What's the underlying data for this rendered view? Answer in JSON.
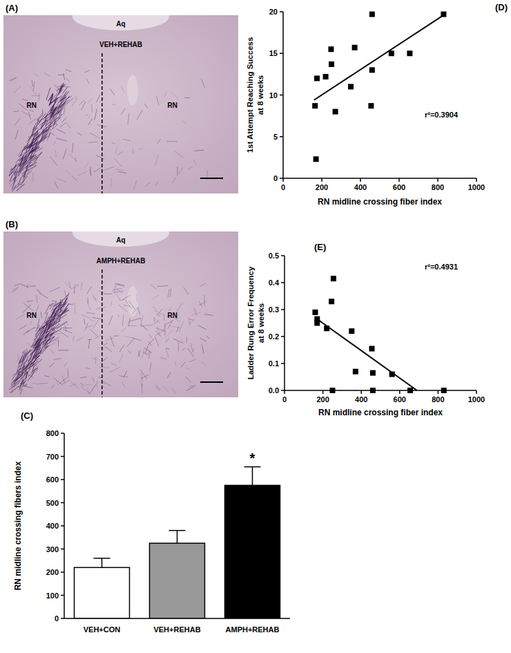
{
  "chart_data": [
    {
      "type": "bar",
      "title": "(C)",
      "categories": [
        "VEH+CON",
        "VEH+REHAB",
        "AMPH+REHAB"
      ],
      "values": [
        220,
        325,
        575
      ],
      "errors": [
        40,
        55,
        80
      ],
      "colors": [
        "#ffffff",
        "#999999",
        "#000000"
      ],
      "significance": [
        null,
        null,
        "*"
      ],
      "ylabel": "RN midline crossing fibers index",
      "ylim": [
        0,
        800
      ],
      "yticks": [
        0,
        100,
        200,
        300,
        400,
        500,
        600,
        700,
        800
      ]
    },
    {
      "type": "scatter",
      "title": "(D)",
      "x": [
        165,
        170,
        175,
        220,
        248,
        250,
        270,
        350,
        370,
        455,
        460,
        460,
        560,
        655,
        830
      ],
      "values": [
        8.7,
        2.3,
        12,
        12.2,
        15.5,
        13.7,
        8,
        11,
        15.7,
        8.7,
        13,
        19.7,
        15,
        15,
        19.7
      ],
      "marker": "square",
      "color": "#000000",
      "trend_line": {
        "x": [
          160,
          830
        ],
        "y": [
          9.4,
          19.6
        ]
      },
      "annotations": [
        "r²=0.3904"
      ],
      "xlabel": "RN midline crossing fiber index",
      "ylabel": [
        "1st Attempt Reaching Success",
        "at 8 weeks"
      ],
      "xlim": [
        0,
        1000
      ],
      "xticks": [
        0,
        200,
        400,
        600,
        800,
        1000
      ],
      "ylim": [
        0,
        20
      ],
      "yticks": [
        0,
        5,
        10,
        15,
        20
      ]
    },
    {
      "type": "scatter",
      "title": "(E)",
      "x": [
        160,
        170,
        170,
        220,
        245,
        255,
        250,
        350,
        370,
        455,
        460,
        460,
        560,
        655,
        830
      ],
      "values": [
        0.29,
        0.265,
        0.25,
        0.23,
        0.33,
        0.415,
        0.0,
        0.22,
        0.07,
        0.155,
        0.065,
        0.0,
        0.06,
        0.0,
        0.0
      ],
      "marker": "square",
      "color": "#000000",
      "trend_line": {
        "x": [
          160,
          690
        ],
        "y": [
          0.27,
          0.0
        ]
      },
      "annotations": [
        "r²=0.4931"
      ],
      "xlabel": "RN midline crossing fiber index",
      "ylabel": [
        "Ladder Rung Error Frequency",
        "at 8 weeks"
      ],
      "xlim": [
        0,
        1000
      ],
      "xticks": [
        0,
        200,
        400,
        600,
        800,
        1000
      ],
      "ylim": [
        0,
        0.5
      ],
      "yticks": [
        {
          "value": 0,
          "label": "0.0"
        },
        0.1,
        0.2,
        0.3,
        0.4,
        0.5
      ]
    }
  ],
  "micrographs": [
    {
      "label": "(A)",
      "aqueduct": "Aq",
      "group": "VEH+REHAB",
      "nuclei": [
        "RN",
        "RN"
      ]
    },
    {
      "label": "(B)",
      "aqueduct": "Aq",
      "group": "AMPH+REHAB",
      "nuclei": [
        "RN",
        "RN"
      ]
    }
  ]
}
